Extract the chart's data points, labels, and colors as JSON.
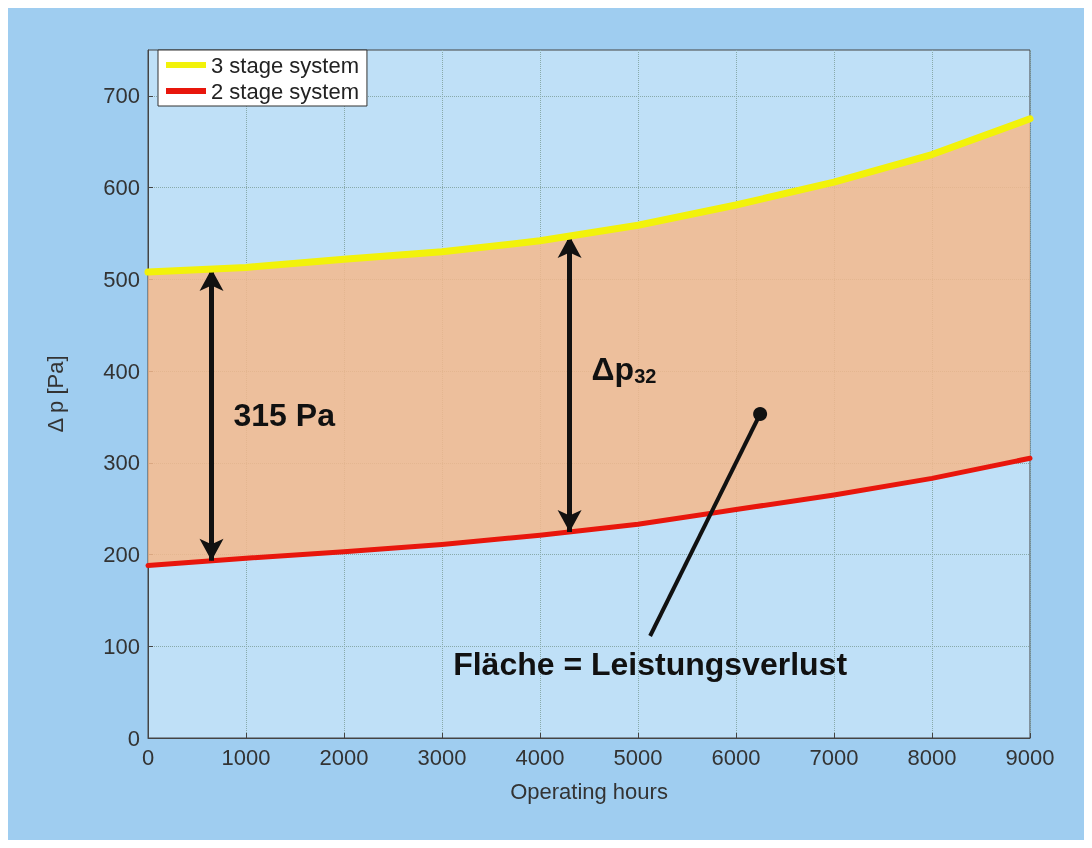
{
  "chart_data": {
    "type": "line",
    "xlabel": "Operating hours",
    "ylabel": "Δ p [Pa]",
    "x": [
      0,
      1000,
      2000,
      3000,
      4000,
      5000,
      6000,
      7000,
      8000,
      9000
    ],
    "series": [
      {
        "name": "3 stage system",
        "color": "#f2f20a",
        "values": [
          508,
          513,
          522,
          530,
          542,
          559,
          581,
          606,
          636,
          675
        ],
        "lower": [
          188,
          196,
          203,
          211,
          221,
          233,
          249,
          265,
          283,
          305
        ],
        "upper": [
          508,
          513,
          522,
          530,
          542,
          559,
          581,
          606,
          636,
          675
        ]
      },
      {
        "name": "2 stage system",
        "color": "#e8160c",
        "values": [
          188,
          196,
          203,
          211,
          221,
          233,
          249,
          265,
          283,
          305
        ]
      }
    ],
    "xlim": [
      0,
      9000
    ],
    "xticks": [
      0,
      1000,
      2000,
      3000,
      4000,
      5000,
      6000,
      7000,
      8000,
      9000
    ],
    "ylim": [
      0,
      750
    ],
    "yticks": [
      0,
      100,
      200,
      300,
      400,
      500,
      600,
      700
    ],
    "grid": true,
    "legend": "top left",
    "marker": "none",
    "line_style": "solid",
    "annotations": [
      "315 Pa",
      "Δp$_{32}$",
      "Fläche = Leistungsverlust"
    ]
  }
}
